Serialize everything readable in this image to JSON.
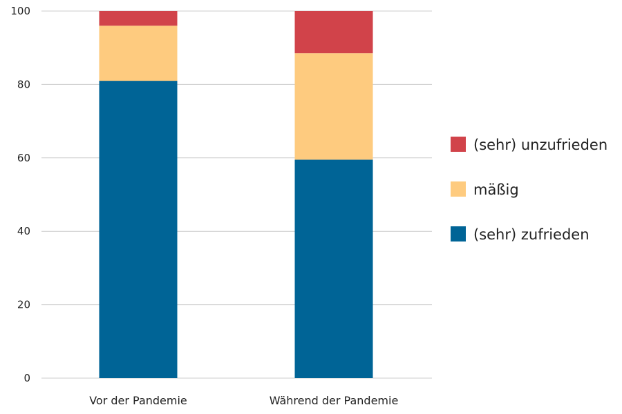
{
  "chart_data": {
    "type": "bar",
    "stacked": true,
    "categories": [
      "Vor der Pandemie",
      "Während der Pandemie"
    ],
    "series": [
      {
        "name": "(sehr) zufrieden",
        "color": "#006496",
        "values": [
          81,
          59.5
        ]
      },
      {
        "name": "mäßig",
        "color": "#fecb7f",
        "values": [
          15,
          29
        ]
      },
      {
        "name": "(sehr) unzufrieden",
        "color": "#d1434a",
        "values": [
          4,
          11.5
        ]
      }
    ],
    "legend_order": [
      "(sehr) unzufrieden",
      "mäßig",
      "(sehr) zufrieden"
    ],
    "ylim": [
      0,
      100
    ],
    "yticks": [
      0,
      20,
      40,
      60,
      80,
      100
    ],
    "grid": true,
    "legend_position": "right"
  }
}
